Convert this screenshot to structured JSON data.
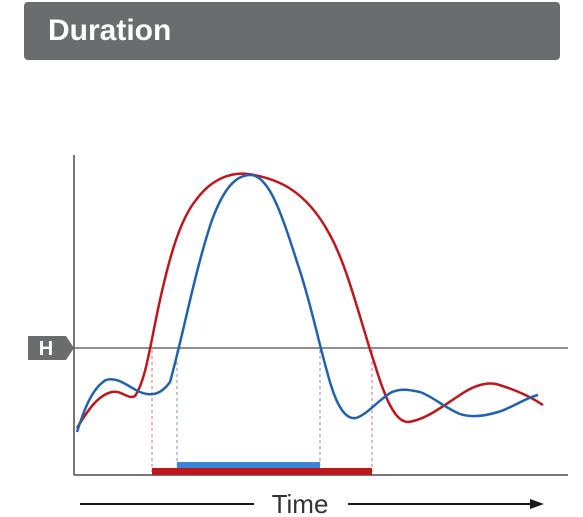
{
  "header": {
    "title": "Duration"
  },
  "threshold": {
    "label": "H"
  },
  "axis": {
    "x_label": "Time"
  },
  "colors": {
    "title_bg": "#6b6c6e",
    "red_curve": "#c0161b",
    "blue_curve": "#2162b0",
    "red_duration_bar": "#c0161b",
    "blue_duration_bar": "#3a87d8",
    "threshold_line": "#6b6c6e",
    "axis": "#4a4a4a"
  }
}
